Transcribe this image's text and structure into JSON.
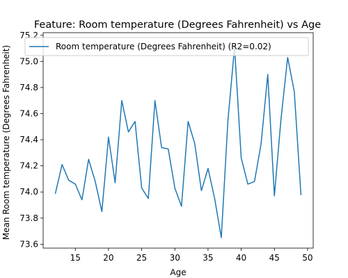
{
  "chart_data": {
    "type": "line",
    "title": "Feature: Room temperature (Degrees Fahrenheit) vs Age",
    "xlabel": "Age",
    "ylabel": "Mean Room temperature (Degrees Fahrenheit)",
    "xlim": [
      10.15,
      50.85
    ],
    "ylim": [
      73.57,
      75.22
    ],
    "xticks": [
      15,
      20,
      25,
      30,
      35,
      40,
      45,
      50
    ],
    "yticks": [
      73.6,
      73.8,
      74.0,
      74.2,
      74.4,
      74.6,
      74.8,
      75.0,
      75.2
    ],
    "grid": false,
    "legend_position": "top",
    "series": [
      {
        "name": "Room temperature (Degrees Fahrenheit) (R2=0.02)",
        "color": "#1f77b4",
        "x": [
          12,
          13,
          14,
          15,
          16,
          17,
          18,
          19,
          20,
          21,
          22,
          23,
          24,
          25,
          26,
          27,
          28,
          29,
          30,
          31,
          32,
          33,
          34,
          35,
          36,
          37,
          38,
          39,
          40,
          41,
          42,
          43,
          44,
          45,
          46,
          47,
          48,
          49
        ],
        "values": [
          73.99,
          74.21,
          74.09,
          74.06,
          73.94,
          74.25,
          74.08,
          73.85,
          74.42,
          74.07,
          74.7,
          74.46,
          74.54,
          74.03,
          73.95,
          74.7,
          74.34,
          74.33,
          74.03,
          73.89,
          74.54,
          74.37,
          74.01,
          74.18,
          73.95,
          73.65,
          74.55,
          75.11,
          74.26,
          74.06,
          74.08,
          74.37,
          74.9,
          73.97,
          74.56,
          75.03,
          74.77,
          73.98
        ]
      }
    ]
  }
}
